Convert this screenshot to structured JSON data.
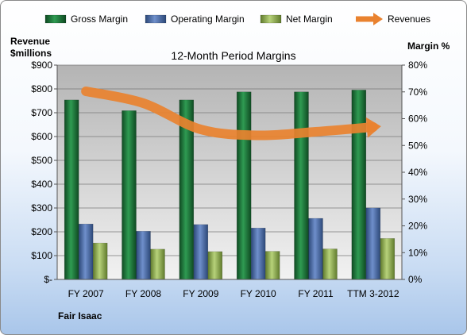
{
  "chart_data": {
    "type": "bar",
    "title": "12-Month Period Margins",
    "company": "Fair Isaac",
    "y_left_label": [
      "Revenue",
      "$millions"
    ],
    "y_right_label": "Margin %",
    "categories": [
      "FY 2007",
      "FY 2008",
      "FY 2009",
      "FY 2010",
      "FY 2011",
      "TTM 3-2012"
    ],
    "y_left_ticks": [
      "$-",
      "$100",
      "$200",
      "$300",
      "$400",
      "$500",
      "$600",
      "$700",
      "$800",
      "$900"
    ],
    "y_right_ticks": [
      "0%",
      "10%",
      "20%",
      "30%",
      "40%",
      "50%",
      "60%",
      "70%",
      "80%"
    ],
    "y_left_range": [
      0,
      900
    ],
    "y_right_range": [
      0,
      80
    ],
    "series": [
      {
        "name": "Gross Margin",
        "axis": "right",
        "unit": "%",
        "values": [
          67,
          63,
          67,
          70,
          70,
          70.7
        ],
        "color": "#1f7a3c"
      },
      {
        "name": "Operating Margin",
        "axis": "right",
        "unit": "%",
        "values": [
          20.7,
          18,
          20.5,
          19.2,
          22.8,
          26.7
        ],
        "color": "#4a6ca8"
      },
      {
        "name": "Net Margin",
        "axis": "right",
        "unit": "%",
        "values": [
          13.6,
          11.3,
          10.4,
          10.5,
          11.4,
          15.3
        ],
        "color": "#9bbb59"
      },
      {
        "name": "Revenues",
        "axis": "left",
        "unit": "$M",
        "values": [
          790,
          740,
          630,
          605,
          620,
          640
        ],
        "color": "#e9822f"
      }
    ],
    "legend_position": "top",
    "grid": true
  }
}
